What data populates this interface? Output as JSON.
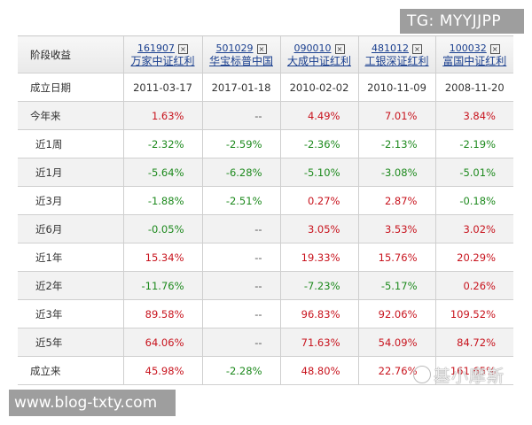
{
  "table": {
    "header_label": "阶段收益",
    "funds": [
      {
        "code": "161907",
        "name": "万家中证红利",
        "remove_icon": "close-box-icon"
      },
      {
        "code": "501029",
        "name": "华宝标普中国",
        "remove_icon": "close-box-icon"
      },
      {
        "code": "090010",
        "name": "大成中证红利",
        "remove_icon": "close-box-icon"
      },
      {
        "code": "481012",
        "name": "工银深证红利",
        "remove_icon": "close-box-icon"
      },
      {
        "code": "100032",
        "name": "富国中证红利",
        "remove_icon": "close-box-icon"
      }
    ],
    "inception_row": {
      "label": "成立日期",
      "values": [
        "2011-03-17",
        "2017-01-18",
        "2010-02-02",
        "2010-11-09",
        "2008-11-20"
      ]
    },
    "rows": [
      {
        "label": "今年来",
        "values": [
          "1.63%",
          "--",
          "4.49%",
          "7.01%",
          "3.84%"
        ]
      },
      {
        "label": "近1周",
        "values": [
          "-2.32%",
          "-2.59%",
          "-2.36%",
          "-2.13%",
          "-2.19%"
        ]
      },
      {
        "label": "近1月",
        "values": [
          "-5.64%",
          "-6.28%",
          "-5.10%",
          "-3.08%",
          "-5.01%"
        ]
      },
      {
        "label": "近3月",
        "values": [
          "-1.88%",
          "-2.51%",
          "0.27%",
          "2.87%",
          "-0.18%"
        ]
      },
      {
        "label": "近6月",
        "values": [
          "-0.05%",
          "--",
          "3.05%",
          "3.53%",
          "3.02%"
        ]
      },
      {
        "label": "近1年",
        "values": [
          "15.34%",
          "--",
          "19.33%",
          "15.76%",
          "20.29%"
        ]
      },
      {
        "label": "近2年",
        "values": [
          "-11.76%",
          "--",
          "-7.23%",
          "-5.17%",
          "0.26%"
        ]
      },
      {
        "label": "近3年",
        "values": [
          "89.58%",
          "--",
          "96.83%",
          "92.06%",
          "109.52%"
        ]
      },
      {
        "label": "近5年",
        "values": [
          "64.06%",
          "--",
          "71.63%",
          "54.09%",
          "84.72%"
        ]
      },
      {
        "label": "成立来",
        "values": [
          "45.98%",
          "-2.28%",
          "48.80%",
          "22.76%",
          "161.65%"
        ]
      }
    ]
  },
  "colors": {
    "positive": "#c8141e",
    "negative": "#1e8a1e",
    "link": "#1a3f8f"
  },
  "watermarks": {
    "tg": "TG: MYYJJPP",
    "site": "www.blog-txty.com",
    "brand": "基小摩斯"
  }
}
